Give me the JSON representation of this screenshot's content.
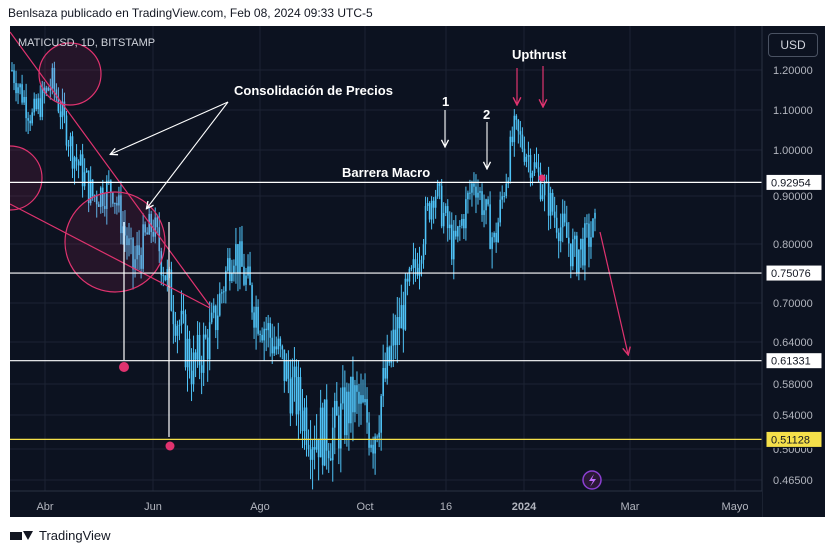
{
  "header": {
    "text": "Benlsaza publicado en TradingView.com, Feb 08, 2024 09:33 UTC-5"
  },
  "symbol": {
    "text": "MATICUSD, 1D, BITSTAMP"
  },
  "currency_button": "USD",
  "footer": {
    "brand": "TradingView"
  },
  "colors": {
    "background": "#0c1220",
    "candle": "#4fc3f7",
    "horizontal_line": "#ffffff",
    "support_line": "#f5e04a",
    "annotation": "#e0336f",
    "text": "#d1d4dc"
  },
  "chart_data": {
    "type": "candlestick",
    "title": "MATICUSD, 1D, BITSTAMP",
    "currency": "USD",
    "y_ticks": [
      1.2,
      1.1,
      1.0,
      0.9,
      0.8,
      0.7,
      0.64,
      0.58,
      0.54,
      0.5,
      0.465
    ],
    "y_tick_labels": [
      "1.20000",
      "1.10000",
      "1.00000",
      "0.90000",
      "0.80000",
      "0.70000",
      "0.64000",
      "0.58000",
      "0.54000",
      "0.50000",
      "0.46500"
    ],
    "x_ticks": [
      "Abr",
      "Jun",
      "Ago",
      "Oct",
      "16",
      "2024",
      "Mar",
      "Mayo"
    ],
    "ylim": [
      0.44,
      1.3
    ],
    "grid": true,
    "price_lines": [
      {
        "label": "0.92954",
        "value": 0.92954,
        "color": "#ffffff"
      },
      {
        "label": "0.75076",
        "value": 0.75076,
        "color": "#ffffff"
      },
      {
        "label": "0.61331",
        "value": 0.61331,
        "color": "#ffffff"
      },
      {
        "label": "0.51128",
        "value": 0.51128,
        "color": "#f5e04a"
      }
    ],
    "annotations": [
      {
        "text": "Consolidación de Precios"
      },
      {
        "text": "Barrera Macro"
      },
      {
        "text": "Upthrust"
      },
      {
        "text": "1"
      },
      {
        "text": "2"
      }
    ],
    "price_path": [
      1.2,
      1.08,
      1.17,
      1.0,
      0.9,
      0.92,
      0.76,
      0.84,
      0.7,
      0.6,
      0.66,
      0.8,
      0.7,
      0.64,
      0.57,
      0.52,
      0.52,
      0.56,
      0.52,
      0.64,
      0.75,
      0.92,
      0.79,
      0.94,
      0.8,
      1.05,
      0.96,
      0.86,
      0.78,
      0.83
    ]
  }
}
